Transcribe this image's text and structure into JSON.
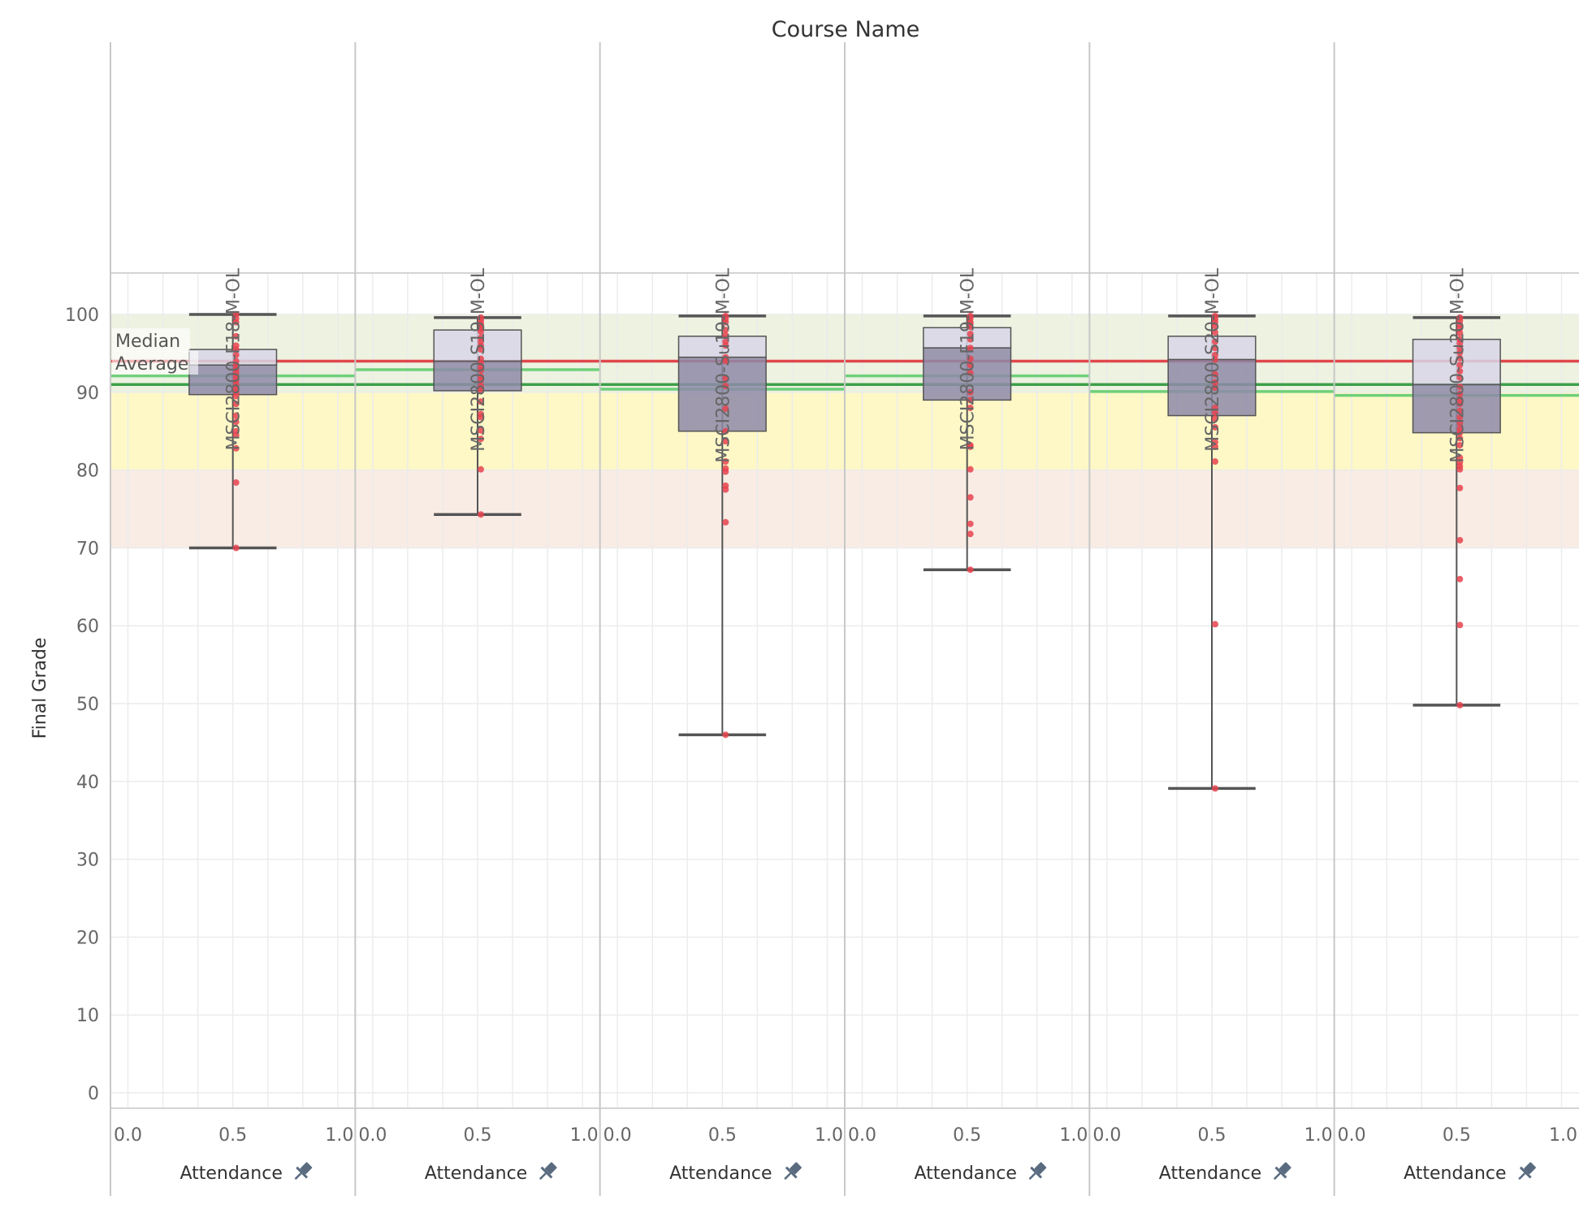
{
  "chart_data": {
    "type": "box",
    "title": "Course Name",
    "ylabel": "Final Grade",
    "xlabel": "Attendance",
    "ylim": [
      0,
      100
    ],
    "y_ticks": [
      "0",
      "10",
      "20",
      "30",
      "40",
      "50",
      "60",
      "70",
      "80",
      "90",
      "100"
    ],
    "x_ticks": [
      "0.0",
      "0.5",
      "1.0"
    ],
    "x_field_icon": "pin-icon",
    "grade_bands": [
      {
        "from": 90,
        "to": 100,
        "color": "#edf2e1"
      },
      {
        "from": 80,
        "to": 90,
        "color": "#fdf8c6"
      },
      {
        "from": 70,
        "to": 80,
        "color": "#f9ece4"
      }
    ],
    "reference_lines": [
      {
        "name": "Median",
        "value": 94,
        "color": "#e0474c"
      },
      {
        "name": "Average",
        "value": 91,
        "color": "#3ea04a"
      }
    ],
    "course_average_color": "#6fd07a",
    "box_colors": {
      "lower": "#8e8aa8",
      "upper": "#d8d6e6",
      "whisker": "#555555",
      "point": "#e8434f"
    },
    "panels": [
      {
        "course": "MSCI2800-F18-M-OL",
        "min": 70,
        "q1": 89.7,
        "median": 93.5,
        "q3": 95.5,
        "max": 100,
        "average": 92.1,
        "points": [
          100,
          99.5,
          99,
          97.2,
          96,
          95.5,
          94.8,
          94,
          93.5,
          93,
          92.5,
          92,
          91.5,
          91,
          90.5,
          90,
          89.5,
          88.5,
          87,
          86.2,
          85,
          84.5,
          82.8,
          78.4,
          70
        ]
      },
      {
        "course": "MSCI2800-S19-M-OL",
        "min": 74.3,
        "q1": 90.2,
        "median": 94,
        "q3": 98,
        "max": 99.6,
        "average": 92.9,
        "points": [
          99.6,
          99.2,
          98.8,
          98.5,
          98.2,
          97.8,
          97,
          96.5,
          96,
          95.5,
          94.3,
          93.8,
          93.2,
          92.8,
          92,
          91.5,
          90.8,
          90.2,
          88.8,
          87.2,
          86.8,
          85.1,
          84,
          80.1,
          74.3
        ]
      },
      {
        "course": "MSCI2800-Su19-M-OL",
        "min": 46,
        "q1": 85,
        "median": 94.5,
        "q3": 97.2,
        "max": 99.8,
        "average": 90.4,
        "points": [
          99.8,
          99.4,
          99,
          98,
          97.3,
          96.5,
          96,
          94.5,
          94,
          91.8,
          90.8,
          87.9,
          85,
          83.7,
          81.1,
          80.2,
          79.8,
          78,
          77.5,
          73.3,
          46
        ]
      },
      {
        "course": "MSCI2800-F19-M-OL",
        "min": 67.2,
        "q1": 89,
        "median": 95.7,
        "q3": 98.3,
        "max": 99.8,
        "average": 92.1,
        "points": [
          99.8,
          99.5,
          99,
          98.8,
          98.4,
          97.5,
          96.8,
          95.7,
          94.3,
          93.5,
          92.5,
          90,
          89,
          88,
          83.2,
          83,
          80.1,
          76.5,
          73.1,
          71.8,
          67.2
        ]
      },
      {
        "course": "MSCI2800-S20-M-OL",
        "min": 39.1,
        "q1": 87,
        "median": 94.2,
        "q3": 97.2,
        "max": 99.8,
        "average": 90.1,
        "points": [
          99.8,
          99.4,
          99,
          98.5,
          97.7,
          96.5,
          95.7,
          94.8,
          94.2,
          92.3,
          91.3,
          90.6,
          88,
          87.4,
          86.6,
          85.5,
          83.6,
          83,
          81.1,
          60.2,
          39.1
        ]
      },
      {
        "course": "MSCI2800-Su20-M-OL",
        "min": 49.8,
        "q1": 84.8,
        "median": 91,
        "q3": 96.8,
        "max": 99.6,
        "average": 89.6,
        "points": [
          99.6,
          99.2,
          98.7,
          98.2,
          97.6,
          96.8,
          96.3,
          95.7,
          95.1,
          94.4,
          93.5,
          92.7,
          91.9,
          90.7,
          89.8,
          89.1,
          88.5,
          87.6,
          86.8,
          86,
          85.3,
          84.8,
          84.1,
          83.2,
          81.6,
          81,
          80.5,
          80.1,
          77.7,
          71,
          66,
          60.1,
          49.8
        ]
      }
    ]
  }
}
